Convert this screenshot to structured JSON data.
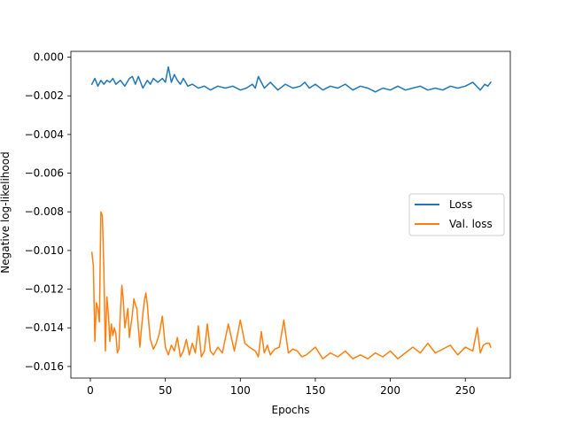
{
  "chart_data": {
    "type": "line",
    "xlabel": "Epochs",
    "ylabel": "Negative log-likelihood",
    "xlim": [
      -13,
      280
    ],
    "ylim": [
      -0.0166,
      0.0003
    ],
    "xticks": [
      0,
      50,
      100,
      150,
      200,
      250
    ],
    "xtick_labels": [
      "0",
      "50",
      "100",
      "150",
      "200",
      "250"
    ],
    "yticks": [
      0.0,
      -0.002,
      -0.004,
      -0.006,
      -0.008,
      -0.01,
      -0.012,
      -0.014,
      -0.016
    ],
    "ytick_labels": [
      "0.000",
      "−0.002",
      "−0.004",
      "−0.006",
      "−0.008",
      "−0.010",
      "−0.012",
      "−0.014",
      "−0.016"
    ],
    "grid": false,
    "legend_position": "center-right",
    "series": [
      {
        "name": "Loss",
        "color": "#1f77b4",
        "x": [
          1,
          3,
          5,
          7,
          9,
          11,
          13,
          15,
          17,
          20,
          23,
          26,
          28,
          30,
          32,
          35,
          38,
          40,
          42,
          45,
          48,
          50,
          52,
          54,
          56,
          58,
          60,
          62,
          65,
          68,
          72,
          76,
          80,
          85,
          90,
          95,
          100,
          104,
          108,
          110,
          112,
          116,
          120,
          125,
          130,
          135,
          140,
          143,
          146,
          150,
          155,
          160,
          165,
          170,
          175,
          180,
          185,
          190,
          195,
          200,
          205,
          210,
          215,
          220,
          225,
          230,
          235,
          240,
          245,
          250,
          255,
          260,
          263,
          265,
          267
        ],
        "y": [
          -0.0014,
          -0.0011,
          -0.0015,
          -0.0012,
          -0.0014,
          -0.0012,
          -0.0013,
          -0.0011,
          -0.0014,
          -0.0012,
          -0.0015,
          -0.0011,
          -0.001,
          -0.0014,
          -0.001,
          -0.0016,
          -0.0012,
          -0.0014,
          -0.0011,
          -0.0013,
          -0.0011,
          -0.0013,
          -0.0005,
          -0.0013,
          -0.0009,
          -0.0012,
          -0.0014,
          -0.0011,
          -0.0015,
          -0.0014,
          -0.0016,
          -0.0015,
          -0.0017,
          -0.0015,
          -0.0016,
          -0.0015,
          -0.0017,
          -0.0016,
          -0.0014,
          -0.0016,
          -0.001,
          -0.0016,
          -0.0013,
          -0.0017,
          -0.0014,
          -0.0016,
          -0.0015,
          -0.0013,
          -0.0016,
          -0.0014,
          -0.0017,
          -0.0015,
          -0.0016,
          -0.0014,
          -0.0017,
          -0.0015,
          -0.0016,
          -0.0018,
          -0.0016,
          -0.0017,
          -0.0015,
          -0.0017,
          -0.0016,
          -0.0015,
          -0.0017,
          -0.0016,
          -0.0017,
          -0.0015,
          -0.0016,
          -0.0015,
          -0.0013,
          -0.0017,
          -0.0014,
          -0.0015,
          -0.0013
        ]
      },
      {
        "name": "Val. loss",
        "color": "#ff7f0e",
        "x": [
          1,
          2,
          3,
          4,
          5,
          6,
          7,
          8,
          9,
          10,
          11,
          12,
          13,
          14,
          15,
          16,
          17,
          18,
          19,
          20,
          21,
          22,
          23,
          24,
          25,
          26,
          27,
          28,
          29,
          30,
          31,
          32,
          33,
          34,
          35,
          36,
          37,
          38,
          39,
          40,
          42,
          44,
          46,
          48,
          50,
          52,
          54,
          56,
          58,
          60,
          62,
          64,
          66,
          68,
          70,
          72,
          74,
          76,
          78,
          80,
          82,
          85,
          88,
          92,
          96,
          100,
          103,
          106,
          110,
          112,
          114,
          116,
          118,
          120,
          123,
          126,
          129,
          132,
          135,
          138,
          141,
          144,
          147,
          150,
          155,
          160,
          165,
          170,
          175,
          180,
          185,
          190,
          195,
          200,
          205,
          210,
          215,
          220,
          225,
          230,
          235,
          240,
          245,
          250,
          255,
          258,
          260,
          262,
          264,
          266,
          267
        ],
        "y": [
          -0.0101,
          -0.0108,
          -0.0147,
          -0.0127,
          -0.013,
          -0.0137,
          -0.008,
          -0.0082,
          -0.011,
          -0.0152,
          -0.0124,
          -0.0133,
          -0.0147,
          -0.0138,
          -0.0144,
          -0.014,
          -0.0143,
          -0.0153,
          -0.0151,
          -0.0132,
          -0.0118,
          -0.0126,
          -0.014,
          -0.0135,
          -0.013,
          -0.0145,
          -0.0139,
          -0.0133,
          -0.0125,
          -0.0128,
          -0.013,
          -0.014,
          -0.015,
          -0.0141,
          -0.0133,
          -0.0126,
          -0.0122,
          -0.0128,
          -0.0138,
          -0.0146,
          -0.0151,
          -0.0148,
          -0.0143,
          -0.0134,
          -0.015,
          -0.0154,
          -0.0149,
          -0.0152,
          -0.0145,
          -0.0155,
          -0.0152,
          -0.0146,
          -0.0154,
          -0.0148,
          -0.0153,
          -0.0139,
          -0.0155,
          -0.0152,
          -0.0138,
          -0.0152,
          -0.0154,
          -0.015,
          -0.0153,
          -0.0138,
          -0.0152,
          -0.0136,
          -0.0148,
          -0.015,
          -0.0152,
          -0.0155,
          -0.0142,
          -0.0153,
          -0.0149,
          -0.0154,
          -0.0151,
          -0.015,
          -0.0136,
          -0.0153,
          -0.0151,
          -0.0152,
          -0.0155,
          -0.0154,
          -0.0152,
          -0.015,
          -0.0156,
          -0.0153,
          -0.0155,
          -0.0152,
          -0.0156,
          -0.0154,
          -0.0156,
          -0.0153,
          -0.0155,
          -0.0152,
          -0.0156,
          -0.0153,
          -0.015,
          -0.0153,
          -0.0148,
          -0.0153,
          -0.0151,
          -0.0149,
          -0.0154,
          -0.015,
          -0.0152,
          -0.014,
          -0.0153,
          -0.0149,
          -0.0148,
          -0.0148,
          -0.015
        ]
      }
    ]
  }
}
